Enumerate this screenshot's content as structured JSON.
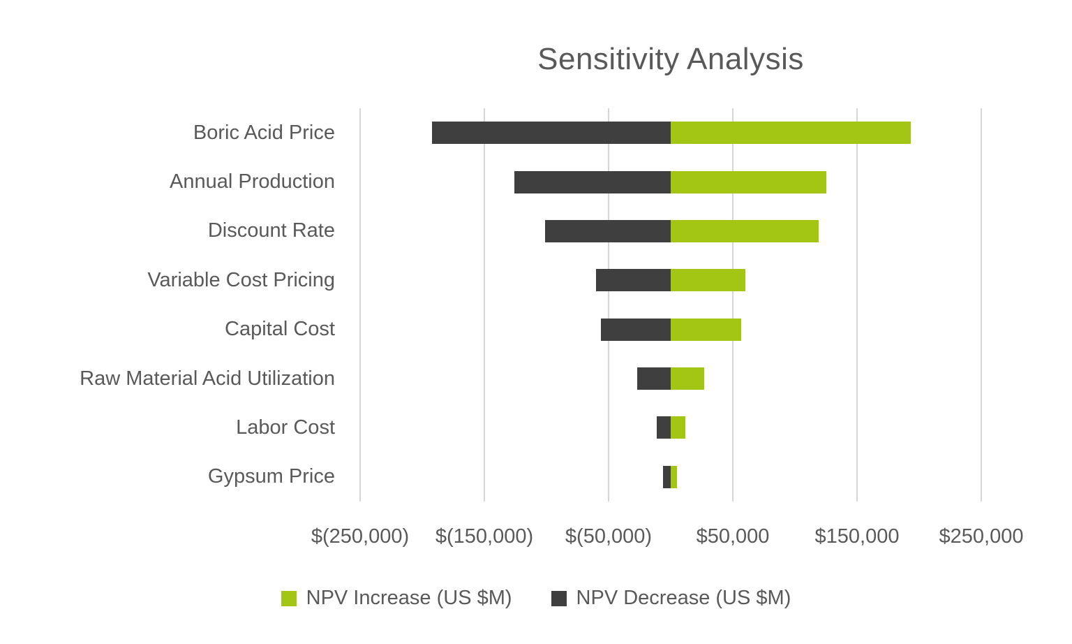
{
  "chart_data": {
    "type": "bar",
    "orientation": "horizontal",
    "title": "Sensitivity Analysis",
    "categories": [
      "Boric Acid Price",
      "Annual Production",
      "Discount Rate",
      "Variable Cost Pricing",
      "Capital Cost",
      "Raw Material Acid Utilization",
      "Labor Cost",
      "Gypsum Price"
    ],
    "series": [
      {
        "id": "npv-increase",
        "name": "NPV Increase (US $M)",
        "color": "#A3C614",
        "values": [
          193000,
          125000,
          119000,
          60000,
          57000,
          27000,
          12000,
          5000
        ]
      },
      {
        "id": "npv-decrease",
        "name": "NPV Decrease (US $M)",
        "color": "#3F3F3F",
        "values": [
          -192000,
          -126000,
          -101000,
          -60000,
          -56000,
          -27000,
          -11000,
          -6000
        ]
      }
    ],
    "xlim": [
      -250000,
      250000
    ],
    "x_tick_values": [
      -250000,
      -150000,
      -50000,
      50000,
      150000,
      250000
    ],
    "x_tick_labels": [
      "$(250,000)",
      "$(150,000)",
      "$(50,000)",
      "$50,000",
      "$150,000",
      "$250,000"
    ],
    "grid": "vertical",
    "legend_position": "bottom"
  },
  "colors": {
    "text": "#595959",
    "gridline": "#D6D6D6",
    "background": "#FFFFFF"
  }
}
